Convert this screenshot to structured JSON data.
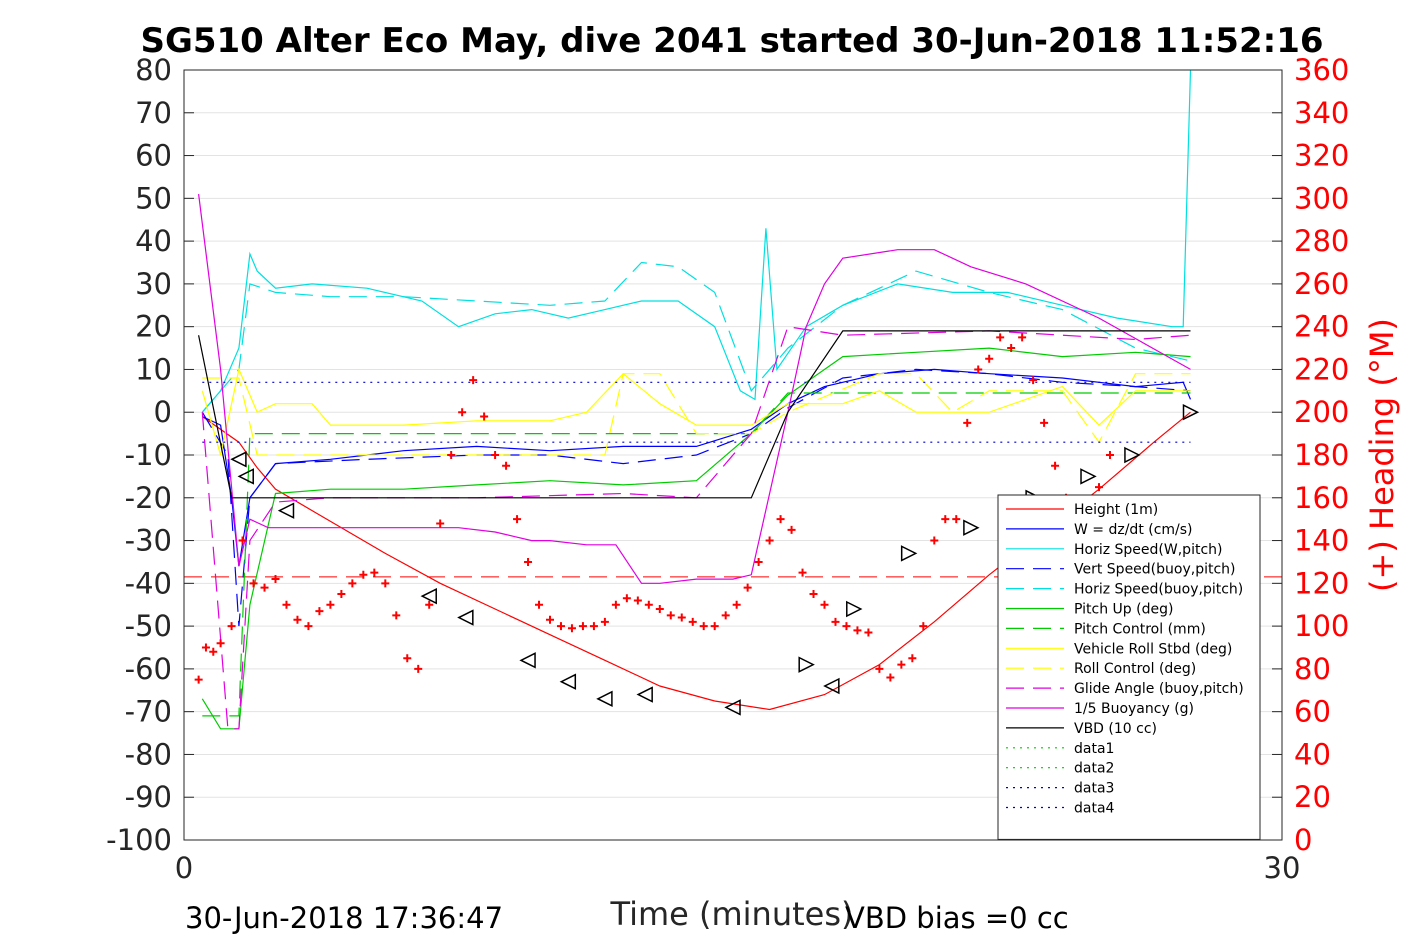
{
  "chart_data": {
    "type": "line",
    "title": "SG510 Alter Eco May, dive 2041 started 30-Jun-2018 11:52:16",
    "xlabel": "Time (minutes)",
    "ylabel_right": "(+) Heading (°M)",
    "xlim": [
      0,
      30
    ],
    "ylim": [
      -100,
      80
    ],
    "ylim_right": [
      0,
      360
    ],
    "x_ticks": [
      "0",
      "30"
    ],
    "y_ticks": [
      "80",
      "70",
      "60",
      "50",
      "40",
      "30",
      "20",
      "10",
      "0",
      "-10",
      "-20",
      "-30",
      "-40",
      "-50",
      "-60",
      "-70",
      "-80",
      "-90",
      "-100"
    ],
    "y_ticks_right": [
      "360",
      "340",
      "320",
      "300",
      "280",
      "260",
      "240",
      "220",
      "200",
      "180",
      "160",
      "140",
      "120",
      "100",
      "80",
      "60",
      "40",
      "20",
      "0"
    ],
    "grid": true,
    "legend_position": "bottom-right",
    "footer_left": "30-Jun-2018 17:36:47",
    "footer_right": "VBD bias =0 cc",
    "series": [
      {
        "name": "Height (1m)",
        "color": "#ff0000",
        "style": "solid",
        "x": [
          0.5,
          1.5,
          2.0,
          2.5,
          3.5,
          4.5,
          5.5,
          7,
          8.5,
          10,
          11.5,
          13,
          14.5,
          16,
          17.5,
          19,
          20.5,
          22,
          23.5,
          25,
          26.5,
          27.5
        ],
        "y": [
          -1,
          -7,
          -13,
          -18,
          -23,
          -28,
          -33,
          -40,
          -46,
          -52,
          -58,
          -64,
          -67.5,
          -69.5,
          -66,
          -59,
          -49,
          -38,
          -28,
          -18,
          -7,
          0
        ]
      },
      {
        "name": "W = dz/dt (cm/s)",
        "color": "#0000ff",
        "style": "solid",
        "x": [
          0.5,
          1.0,
          1.3,
          1.5,
          1.8,
          2.5,
          4,
          6,
          8,
          10,
          12,
          14,
          15.5,
          16.5,
          17.5,
          19,
          20.5,
          22,
          24,
          26,
          27.3,
          27.5
        ],
        "y": [
          -1,
          -3,
          -20,
          -36,
          -20,
          -12,
          -11,
          -9,
          -8,
          -9,
          -8,
          -8,
          -4,
          2,
          6,
          9,
          10,
          9,
          8,
          6,
          7,
          3
        ]
      },
      {
        "name": "Horiz Speed(W,pitch)",
        "color": "#00e0e0",
        "style": "solid",
        "x": [
          0.5,
          1.0,
          1.5,
          1.8,
          2.0,
          2.5,
          3.5,
          5,
          6.5,
          7.5,
          8.5,
          9.5,
          10.5,
          11.5,
          12.5,
          13.5,
          14.5,
          15.2,
          15.6,
          15.9,
          16.2,
          17,
          18,
          19.5,
          21,
          22.5,
          24,
          25.5,
          27,
          27.3,
          27.5
        ],
        "y": [
          0,
          5,
          15,
          37,
          33,
          29,
          30,
          29,
          26,
          20,
          23,
          24,
          22,
          24,
          26,
          26,
          20,
          5,
          3,
          43,
          10,
          20,
          25,
          30,
          28,
          28,
          25,
          22,
          20,
          20,
          80
        ]
      },
      {
        "name": "Vert Speed(buoy,pitch)",
        "color": "#0000ff",
        "style": "dashed",
        "x": [
          0.5,
          1.2,
          1.5,
          1.8,
          2.5,
          5,
          8,
          10,
          12,
          14,
          15.5,
          16.5,
          18,
          20,
          22,
          24,
          26,
          27.5
        ],
        "y": [
          0,
          -10,
          -50,
          -20,
          -12,
          -11,
          -10,
          -10,
          -12,
          -10,
          -5,
          1,
          8,
          10,
          9,
          7,
          6,
          5
        ]
      },
      {
        "name": "Horiz Speed(buoy,pitch)",
        "color": "#00e0e0",
        "style": "dashed",
        "x": [
          0.5,
          1.5,
          1.8,
          2.5,
          4,
          6,
          8,
          10,
          11.5,
          12.5,
          13.5,
          14.5,
          15.5,
          16.5,
          18,
          20,
          22,
          24,
          26,
          27.5
        ],
        "y": [
          0,
          10,
          30,
          28,
          27,
          27,
          26,
          25,
          26,
          35,
          34,
          28,
          5,
          15,
          25,
          33,
          28,
          24,
          15,
          12
        ]
      },
      {
        "name": "Pitch Up (deg)",
        "color": "#00cc00",
        "style": "solid",
        "x": [
          0.5,
          1.0,
          1.5,
          1.8,
          2.5,
          4,
          6,
          8,
          10,
          12,
          14,
          15.5,
          16.5,
          18,
          20,
          22,
          24,
          26,
          27.5
        ],
        "y": [
          -67,
          -74,
          -74,
          -45,
          -19,
          -18,
          -18,
          -17,
          -16,
          -17,
          -16,
          -5,
          4,
          13,
          14,
          15,
          13,
          14,
          13
        ]
      },
      {
        "name": "Pitch Control (mm)",
        "color": "#00cc00",
        "style": "dashed",
        "x": [
          0.5,
          1.5,
          1.8,
          2.5,
          15.5,
          16.5,
          27.5
        ],
        "y": [
          -71,
          -71,
          -5,
          -5,
          -5,
          4.5,
          4.5
        ]
      },
      {
        "name": "Vehicle Roll Stbd (deg)",
        "color": "#ffff00",
        "style": "solid",
        "x": [
          0.5,
          1.0,
          1.5,
          2.0,
          2.5,
          3.5,
          4.0,
          6,
          8,
          10,
          11,
          12,
          13,
          14,
          15.5,
          16.5,
          18,
          19,
          20,
          22,
          24,
          25,
          26,
          27.5
        ],
        "y": [
          5,
          -10,
          10,
          0,
          2,
          2,
          -3,
          -3,
          -2,
          -2,
          0,
          9,
          2,
          -3,
          -3,
          2,
          2,
          5,
          0,
          0,
          6,
          -3,
          5,
          5
        ]
      },
      {
        "name": "Roll Control (deg)",
        "color": "#ffff00",
        "style": "dashed",
        "x": [
          0.5,
          1.5,
          2.0,
          3.5,
          4,
          11.5,
          12,
          13,
          14,
          15.5,
          16.5,
          19,
          20,
          21,
          22,
          24,
          25,
          26,
          27.5
        ],
        "y": [
          8,
          8,
          -10,
          -10,
          -10,
          -10,
          9,
          9,
          -5,
          -5,
          0,
          9,
          9,
          0,
          5,
          5,
          -7,
          9,
          9
        ]
      },
      {
        "name": "Glide Angle (buoy,pitch)",
        "color": "#e000e0",
        "style": "dashed",
        "x": [
          0.5,
          1.2,
          1.5,
          1.8,
          2.5,
          4,
          8,
          12,
          14,
          15.5,
          16.5,
          18,
          22,
          24,
          26,
          27.5
        ],
        "y": [
          0,
          -74,
          -74,
          -30,
          -21,
          -20,
          -20,
          -19,
          -20,
          -5,
          20,
          18,
          19,
          18,
          17,
          18
        ]
      },
      {
        "name": "1/5 Buoyancy (g)",
        "color": "#e000e0",
        "style": "solid",
        "x": [
          0.4,
          1.0,
          1.5,
          1.8,
          2.3,
          5,
          7.5,
          8.5,
          9,
          9.5,
          10,
          11,
          11.8,
          12.5,
          13,
          14,
          15,
          15.5,
          16.5,
          17,
          17.5,
          18,
          19.5,
          20.5,
          21.5,
          23,
          25,
          27.5
        ],
        "y": [
          51,
          10,
          -36,
          -25,
          -27,
          -27,
          -27,
          -28,
          -29,
          -30,
          -30,
          -31,
          -31,
          -40,
          -40,
          -39,
          -39,
          -38,
          0,
          20,
          30,
          36,
          38,
          38,
          34,
          30,
          22,
          10
        ]
      },
      {
        "name": "VBD (10 cc)",
        "color": "#000000",
        "style": "solid",
        "x": [
          0.4,
          1.3,
          1.8,
          5,
          10,
          14.5,
          15.5,
          16.5,
          18,
          20,
          24,
          27.5
        ],
        "y": [
          18,
          -20,
          -20,
          -20,
          -20,
          -20,
          -20,
          0,
          19,
          19,
          19,
          19
        ]
      },
      {
        "name": "data1",
        "color": "#00cc00",
        "style": "dotted",
        "x": [],
        "y": []
      },
      {
        "name": "data2",
        "color": "#00cc00",
        "style": "dotted",
        "x": [],
        "y": []
      },
      {
        "name": "data3",
        "color": "#0000cc",
        "style": "dotted",
        "x": [
          0.5,
          27.5
        ],
        "y": [
          7,
          7
        ]
      },
      {
        "name": "data4",
        "color": "#0000cc",
        "style": "dotted",
        "x": [
          0.5,
          27.5
        ],
        "y": [
          -7,
          -7
        ]
      }
    ],
    "red_dashed_reference_y": -38.5,
    "heading_markers": {
      "color": "#ff0000",
      "x": [
        0.4,
        0.6,
        0.8,
        1.0,
        1.3,
        1.6,
        1.9,
        2.2,
        2.5,
        2.8,
        3.1,
        3.4,
        3.7,
        4.0,
        4.3,
        4.6,
        4.9,
        5.2,
        5.5,
        5.8,
        6.1,
        6.4,
        6.7,
        7.0,
        7.3,
        7.6,
        7.9,
        8.2,
        8.5,
        8.8,
        9.1,
        9.4,
        9.7,
        10.0,
        10.3,
        10.6,
        10.9,
        11.2,
        11.5,
        11.8,
        12.1,
        12.4,
        12.7,
        13.0,
        13.3,
        13.6,
        13.9,
        14.2,
        14.5,
        14.8,
        15.1,
        15.4,
        15.7,
        16.0,
        16.3,
        16.6,
        16.9,
        17.2,
        17.5,
        17.8,
        18.1,
        18.4,
        18.7,
        19.0,
        19.3,
        19.6,
        19.9,
        20.2,
        20.5,
        20.8,
        21.1,
        21.4,
        21.7,
        22.0,
        22.3,
        22.6,
        22.9,
        23.2,
        23.5,
        23.8,
        24.1,
        24.4,
        24.7,
        25.0,
        25.3,
        25.6,
        25.9,
        26.2
      ],
      "y": [
        75,
        90,
        88,
        92,
        100,
        140,
        120,
        118,
        122,
        110,
        103,
        100,
        107,
        110,
        115,
        120,
        124,
        125,
        120,
        105,
        85,
        80,
        110,
        148,
        180,
        200,
        215,
        198,
        180,
        175,
        150,
        130,
        110,
        103,
        100,
        99,
        100,
        100,
        102,
        110,
        113,
        112,
        110,
        108,
        105,
        104,
        102,
        100,
        100,
        105,
        110,
        118,
        130,
        140,
        150,
        145,
        125,
        115,
        110,
        102,
        100,
        98,
        97,
        80,
        76,
        82,
        85,
        100,
        140,
        150,
        150,
        195,
        220,
        225,
        235,
        230,
        235,
        215,
        195,
        175,
        160,
        150,
        155,
        165,
        180,
        150,
        145,
        140
      ]
    },
    "triangle_markers": {
      "color": "#000000",
      "down_x": [
        1.5,
        1.7,
        2.8,
        6.7,
        7.7,
        9.4,
        10.5,
        11.5,
        12.6,
        15.0,
        17.7
      ],
      "down_y": [
        -11,
        -15,
        -23,
        -43,
        -48,
        -58,
        -63,
        -67,
        -66,
        -69,
        -64
      ],
      "up_x": [
        17.0,
        18.3,
        19.8,
        21.5,
        23.2,
        24.7,
        25.9,
        27.5
      ],
      "up_y": [
        -59,
        -46,
        -33,
        -27,
        -20,
        -15,
        -10,
        0
      ]
    }
  }
}
